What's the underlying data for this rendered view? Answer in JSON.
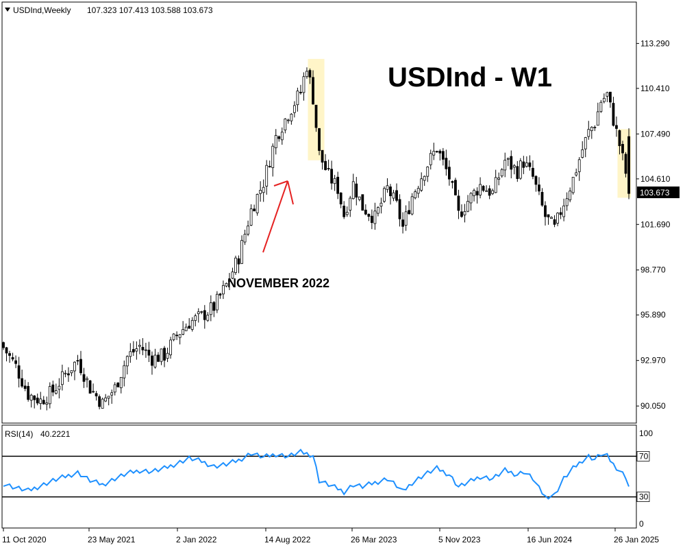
{
  "header": {
    "symbol": "USDInd,Weekly",
    "ohlc": "107.323 107.413 103.588 103.673"
  },
  "watermark": "USDInd - W1",
  "annotation": "NOVEMBER 2022",
  "colors": {
    "candle_bull": "#ffffff",
    "candle_bear": "#000000",
    "rsi_line": "#1e90ff",
    "highlight": "#fff5c8",
    "arrow": "#e52222"
  },
  "chart_data": [
    {
      "type": "candlestick",
      "price_ticks": [
        "113.290",
        "110.410",
        "107.490",
        "104.610",
        "101.690",
        "98.770",
        "95.890",
        "92.970",
        "90.050"
      ],
      "y_range": [
        89.0,
        115.9
      ],
      "last_price": "103.673",
      "x_ticks": [
        "11 Oct 2020",
        "23 May 2021",
        "2 Jan 2022",
        "14 Aug 2022",
        "26 Mar 2023",
        "5 Nov 2023",
        "16 Jun 2024",
        "26 Jan 2025"
      ],
      "close_path": [
        [
          0,
          93.8
        ],
        [
          4,
          92.6
        ],
        [
          8,
          90.8
        ],
        [
          12,
          90.4
        ],
        [
          16,
          91.0
        ],
        [
          20,
          92.1
        ],
        [
          24,
          93.0
        ],
        [
          28,
          91.2
        ],
        [
          32,
          90.2
        ],
        [
          36,
          91.2
        ],
        [
          40,
          93.2
        ],
        [
          44,
          93.9
        ],
        [
          48,
          93.1
        ],
        [
          52,
          93.3
        ],
        [
          56,
          94.6
        ],
        [
          60,
          95.4
        ],
        [
          64,
          95.8
        ],
        [
          68,
          96.4
        ],
        [
          72,
          97.8
        ],
        [
          76,
          99.6
        ],
        [
          80,
          102.6
        ],
        [
          84,
          104.4
        ],
        [
          88,
          107.3
        ],
        [
          92,
          108.8
        ],
        [
          96,
          110.2
        ],
        [
          98,
          111.9
        ],
        [
          100,
          109.8
        ],
        [
          102,
          106.2
        ],
        [
          105,
          104.8
        ],
        [
          108,
          104.0
        ],
        [
          110,
          102.3
        ],
        [
          113,
          104.3
        ],
        [
          116,
          102.8
        ],
        [
          120,
          102.1
        ],
        [
          124,
          104.0
        ],
        [
          127,
          102.9
        ],
        [
          129,
          101.5
        ],
        [
          132,
          103.5
        ],
        [
          136,
          105.2
        ],
        [
          140,
          106.6
        ],
        [
          144,
          104.7
        ],
        [
          147,
          102.3
        ],
        [
          150,
          103.2
        ],
        [
          154,
          104.2
        ],
        [
          158,
          103.7
        ],
        [
          162,
          105.8
        ],
        [
          166,
          105.1
        ],
        [
          168,
          105.7
        ],
        [
          171,
          104.7
        ],
        [
          173,
          103.4
        ],
        [
          175,
          102.2
        ],
        [
          178,
          101.4
        ],
        [
          181,
          103.1
        ],
        [
          184,
          104.6
        ],
        [
          187,
          106.5
        ],
        [
          189,
          107.6
        ],
        [
          191,
          108.2
        ],
        [
          193,
          109.6
        ],
        [
          195,
          110.0
        ],
        [
          197,
          108.4
        ],
        [
          199,
          106.8
        ],
        [
          201,
          105.0
        ],
        [
          202,
          103.673
        ]
      ],
      "highlights": [
        {
          "from_index": 99,
          "to_index": 103,
          "price_from": 105.8,
          "price_to": 112.3
        },
        {
          "from_index": 199,
          "to_index": 202,
          "price_from": 103.4,
          "price_to": 107.8
        }
      ]
    },
    {
      "type": "line",
      "label": "RSI(14)",
      "value_label": "40.2221",
      "y_ticks": [
        "100",
        "70",
        "30",
        "0"
      ],
      "y_range": [
        0,
        100
      ],
      "levels": [
        70,
        30
      ],
      "rsi_path": [
        [
          0,
          43
        ],
        [
          4,
          39
        ],
        [
          8,
          36
        ],
        [
          12,
          41
        ],
        [
          16,
          46
        ],
        [
          20,
          50
        ],
        [
          24,
          54
        ],
        [
          28,
          46
        ],
        [
          32,
          42
        ],
        [
          36,
          48
        ],
        [
          40,
          53
        ],
        [
          44,
          56
        ],
        [
          48,
          55
        ],
        [
          52,
          58
        ],
        [
          56,
          63
        ],
        [
          60,
          68
        ],
        [
          64,
          65
        ],
        [
          68,
          60
        ],
        [
          72,
          62
        ],
        [
          76,
          66
        ],
        [
          80,
          73
        ],
        [
          84,
          69
        ],
        [
          88,
          72
        ],
        [
          92,
          70
        ],
        [
          96,
          74
        ],
        [
          100,
          71
        ],
        [
          102,
          46
        ],
        [
          105,
          42
        ],
        [
          108,
          38
        ],
        [
          110,
          35
        ],
        [
          113,
          42
        ],
        [
          116,
          40
        ],
        [
          120,
          44
        ],
        [
          124,
          48
        ],
        [
          127,
          41
        ],
        [
          129,
          35
        ],
        [
          132,
          44
        ],
        [
          136,
          52
        ],
        [
          140,
          58
        ],
        [
          144,
          52
        ],
        [
          147,
          40
        ],
        [
          150,
          44
        ],
        [
          154,
          50
        ],
        [
          158,
          48
        ],
        [
          162,
          56
        ],
        [
          166,
          52
        ],
        [
          168,
          55
        ],
        [
          171,
          48
        ],
        [
          173,
          38
        ],
        [
          175,
          30
        ],
        [
          178,
          32
        ],
        [
          181,
          48
        ],
        [
          184,
          58
        ],
        [
          187,
          66
        ],
        [
          189,
          70
        ],
        [
          191,
          67
        ],
        [
          193,
          72
        ],
        [
          195,
          70
        ],
        [
          197,
          62
        ],
        [
          199,
          56
        ],
        [
          201,
          50
        ],
        [
          202,
          40.2221
        ]
      ]
    }
  ]
}
